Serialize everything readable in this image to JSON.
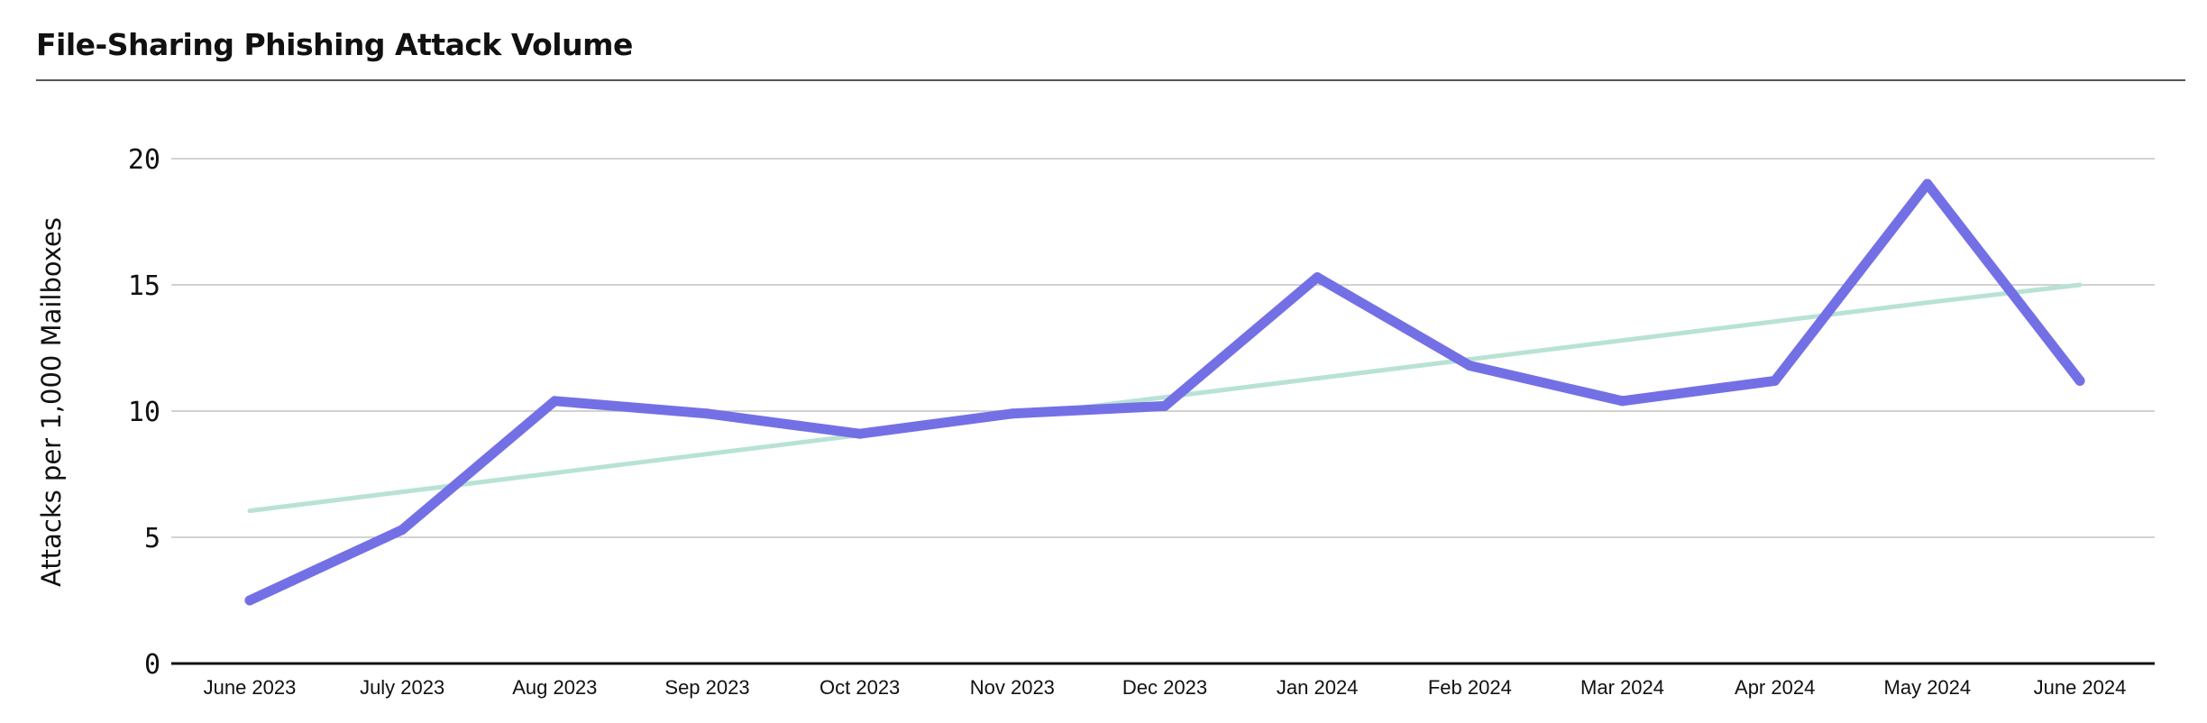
{
  "chart_data": {
    "type": "line",
    "title": "File-Sharing Phishing Attack Volume",
    "xlabel": "",
    "ylabel": "Attacks per 1,000 Mailboxes",
    "categories": [
      "June 2023",
      "July 2023",
      "Aug 2023",
      "Sep 2023",
      "Oct 2023",
      "Nov 2023",
      "Dec 2023",
      "Jan 2024",
      "Feb 2024",
      "Mar 2024",
      "Apr 2024",
      "May 2024",
      "June 2024"
    ],
    "ylim": [
      0,
      20
    ],
    "yticks": [
      0,
      5,
      10,
      15,
      20
    ],
    "grid": true,
    "legend": "none",
    "series": [
      {
        "color": "#7370e6",
        "values": [
          2.5,
          5.3,
          10.4,
          9.9,
          9.1,
          9.9,
          10.2,
          15.3,
          11.8,
          10.4,
          11.2,
          19.0,
          11.2
        ]
      },
      {
        "color": "#b9e2d6",
        "trend": true,
        "values": [
          6.05,
          6.8,
          7.55,
          8.3,
          9.05,
          9.8,
          10.55,
          11.3,
          12.05,
          12.8,
          13.55,
          14.3,
          15.0
        ]
      }
    ]
  }
}
